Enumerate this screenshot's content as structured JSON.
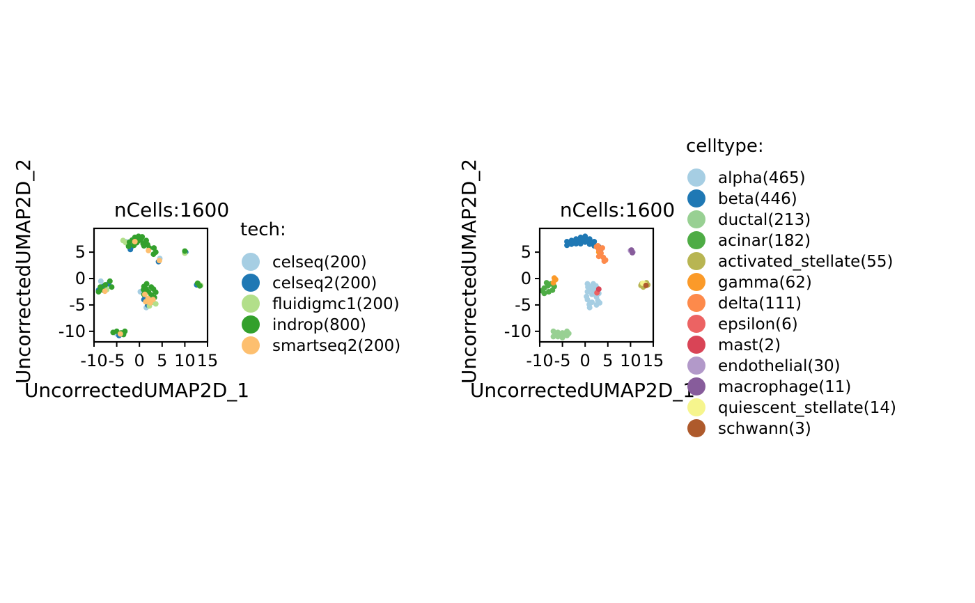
{
  "chart_data": [
    {
      "type": "scatter",
      "title": "nCells:1600",
      "xlabel": "UncorrectedUMAP2D_1",
      "ylabel": "UncorrectedUMAP2D_2",
      "xlim": [
        -10,
        15
      ],
      "ylim": [
        -12,
        9.5
      ],
      "xticks": [
        "-10",
        "-5",
        "0",
        "5",
        "10",
        "15"
      ],
      "yticks": [
        "5",
        "0",
        "-5",
        "-10"
      ],
      "grid": false,
      "legend": {
        "title": "tech:",
        "position": "right"
      },
      "series": [
        {
          "name": "celseq(200)",
          "color": "#a6cee3",
          "points": [
            [
              -7.5,
              -1.8
            ],
            [
              -8.5,
              -0.5
            ],
            [
              1.2,
              -3.5
            ],
            [
              1.5,
              -5.5
            ],
            [
              2.2,
              -4.2
            ],
            [
              4.5,
              3.8
            ],
            [
              -5,
              -10.5
            ],
            [
              0.2,
              -2.5
            ],
            [
              -3,
              7
            ]
          ]
        },
        {
          "name": "celseq2(200)",
          "color": "#1f78b4",
          "points": [
            [
              -8,
              -1.5
            ],
            [
              -9,
              -2.2
            ],
            [
              -6.8,
              -1
            ],
            [
              1,
              -4
            ],
            [
              1.8,
              -5
            ],
            [
              3,
              -4.5
            ],
            [
              -1.8,
              6
            ],
            [
              10.2,
              5
            ],
            [
              12.6,
              -1.2
            ],
            [
              4.2,
              3.2
            ],
            [
              -4.5,
              -10.8
            ],
            [
              -2,
              5.5
            ]
          ]
        },
        {
          "name": "fluidigmc1(200)",
          "color": "#b2df8a",
          "points": [
            [
              -3.6,
              7.2
            ],
            [
              -3,
              6.8
            ],
            [
              2.8,
              -4.5
            ],
            [
              3.6,
              -4.8
            ],
            [
              2.2,
              -5.2
            ],
            [
              13,
              -1
            ],
            [
              13.5,
              -1.3
            ],
            [
              10,
              4.8
            ],
            [
              -7.2,
              -2.1
            ],
            [
              3.1,
              -3.6
            ]
          ]
        },
        {
          "name": "indrop(800)",
          "color": "#33a02c",
          "points": [
            [
              -1,
              7.8
            ],
            [
              -0.2,
              8
            ],
            [
              0.3,
              7.4
            ],
            [
              -0.6,
              6.8
            ],
            [
              0.8,
              6.6
            ],
            [
              1.5,
              7.2
            ],
            [
              1,
              6.2
            ],
            [
              -1.2,
              6.3
            ],
            [
              -0.3,
              7.1
            ],
            [
              1.8,
              6.4
            ],
            [
              2.2,
              5.8
            ],
            [
              -1.6,
              7.3
            ],
            [
              -2.2,
              6.9
            ],
            [
              0.6,
              7.9
            ],
            [
              3.2,
              5.8
            ],
            [
              3.6,
              5
            ],
            [
              3.1,
              4.6
            ],
            [
              1,
              -1.5
            ],
            [
              1.5,
              -2
            ],
            [
              2,
              -2.5
            ],
            [
              1,
              -3
            ],
            [
              2.6,
              -3.1
            ],
            [
              3.1,
              -2
            ],
            [
              3.3,
              -3.6
            ],
            [
              1.6,
              -1
            ],
            [
              2.6,
              -1.6
            ],
            [
              3.6,
              -2.6
            ],
            [
              0.9,
              -2.1
            ],
            [
              -6.5,
              -0.5
            ],
            [
              -7.5,
              -1.2
            ],
            [
              -8,
              -2.2
            ],
            [
              -9,
              -2.5
            ],
            [
              -6.1,
              -1.6
            ],
            [
              -8.6,
              -1.6
            ],
            [
              -5,
              -10
            ],
            [
              -4,
              -10.3
            ],
            [
              -3.2,
              -10
            ],
            [
              -5.8,
              -10.2
            ],
            [
              -3.5,
              -10.6
            ],
            [
              10,
              5.2
            ],
            [
              12.8,
              -0.9
            ],
            [
              13.3,
              -1.4
            ],
            [
              -2.4,
              6.1
            ]
          ]
        },
        {
          "name": "smartseq2(200)",
          "color": "#fdbf6f",
          "points": [
            [
              1.2,
              -3
            ],
            [
              1.9,
              -3.8
            ],
            [
              2.4,
              -4.6
            ],
            [
              1.4,
              -4.4
            ],
            [
              3,
              -4
            ],
            [
              -7.6,
              -2.4
            ],
            [
              -1,
              7
            ],
            [
              2,
              5.3
            ],
            [
              4.4,
              3.4
            ],
            [
              -4.2,
              -10.5
            ]
          ]
        }
      ]
    },
    {
      "type": "scatter",
      "title": "nCells:1600",
      "xlabel": "UncorrectedUMAP2D_1",
      "ylabel": "UncorrectedUMAP2D_2",
      "xlim": [
        -10,
        15
      ],
      "ylim": [
        -12,
        9.5
      ],
      "xticks": [
        "-10",
        "-5",
        "0",
        "5",
        "10",
        "15"
      ],
      "yticks": [
        "5",
        "0",
        "-5",
        "-10"
      ],
      "grid": false,
      "legend": {
        "title": "celltype:",
        "position": "right"
      },
      "series": [
        {
          "name": "alpha(465)",
          "color": "#a6cee3",
          "points": [
            [
              0.5,
              -1
            ],
            [
              1.3,
              -1.5
            ],
            [
              2.1,
              -2
            ],
            [
              0.5,
              -2.5
            ],
            [
              1.5,
              -3
            ],
            [
              2.5,
              -3.5
            ],
            [
              0.5,
              -4
            ],
            [
              1.5,
              -4.5
            ],
            [
              2.5,
              -5
            ],
            [
              1,
              -5.5
            ],
            [
              2,
              -2.6
            ],
            [
              3,
              -2.8
            ],
            [
              0.3,
              -3.4
            ],
            [
              1.2,
              -2
            ],
            [
              2.8,
              -4.2
            ],
            [
              0.9,
              -4.9
            ],
            [
              1.8,
              -1
            ],
            [
              3.2,
              -4.6
            ],
            [
              0.6,
              -1.6
            ],
            [
              2.4,
              -1.4
            ]
          ]
        },
        {
          "name": "beta(446)",
          "color": "#1f78b4",
          "points": [
            [
              -4,
              7
            ],
            [
              -3,
              7.2
            ],
            [
              -2,
              7.5
            ],
            [
              -1,
              7.8
            ],
            [
              0,
              8
            ],
            [
              1,
              7.5
            ],
            [
              2,
              7
            ],
            [
              -4,
              6.3
            ],
            [
              -3,
              6.5
            ],
            [
              -2,
              6.6
            ],
            [
              -1,
              6.6
            ],
            [
              0,
              6.9
            ],
            [
              1,
              6.5
            ],
            [
              2,
              6.2
            ],
            [
              3,
              6
            ],
            [
              -0.5,
              7.4
            ],
            [
              -1.5,
              7
            ],
            [
              0.5,
              7.2
            ],
            [
              1.5,
              6.8
            ],
            [
              -2.5,
              7.1
            ],
            [
              3.5,
              5.6
            ],
            [
              -3.5,
              6.8
            ]
          ]
        },
        {
          "name": "ductal(213)",
          "color": "#98d093",
          "points": [
            [
              -7,
              -10
            ],
            [
              -6,
              -10.2
            ],
            [
              -5,
              -10.3
            ],
            [
              -4,
              -10
            ],
            [
              -7,
              -11
            ],
            [
              -6,
              -11
            ],
            [
              -5,
              -11.2
            ],
            [
              -4,
              -10.8
            ],
            [
              -6.5,
              -10.6
            ],
            [
              -4.5,
              -10.6
            ],
            [
              -5.5,
              -10.7
            ],
            [
              -3.6,
              -10.4
            ]
          ]
        },
        {
          "name": "acinar(182)",
          "color": "#4eac45",
          "points": [
            [
              -9,
              -1.8
            ],
            [
              -8,
              -2.5
            ],
            [
              -7.5,
              -1
            ],
            [
              -8.5,
              -0.8
            ],
            [
              -9,
              -2.8
            ],
            [
              -6.8,
              -1.5
            ],
            [
              -8.2,
              -1.4
            ],
            [
              -7.2,
              -2.2
            ],
            [
              -9.5,
              -2.3
            ]
          ]
        },
        {
          "name": "activated_stellate(55)",
          "color": "#b8b552",
          "points": [
            [
              12.5,
              -1
            ],
            [
              13,
              -1.4
            ],
            [
              13.5,
              -0.8
            ],
            [
              12.8,
              -1.6
            ],
            [
              13.8,
              -1.2
            ],
            [
              12.3,
              -1.3
            ]
          ]
        },
        {
          "name": "gamma(62)",
          "color": "#fb9a29",
          "points": [
            [
              -6.5,
              -0.2
            ],
            [
              -7,
              -0.8
            ],
            [
              3,
              5
            ],
            [
              3.4,
              4.4
            ],
            [
              -6.8,
              0.1
            ]
          ]
        },
        {
          "name": "delta(111)",
          "color": "#fd8a4b",
          "points": [
            [
              2.5,
              6
            ],
            [
              3,
              5.5
            ],
            [
              3.5,
              4.8
            ],
            [
              4,
              4
            ],
            [
              4.5,
              3.5
            ],
            [
              3,
              4.2
            ],
            [
              2.8,
              6.2
            ],
            [
              3.8,
              5.8
            ],
            [
              4.2,
              3.3
            ]
          ]
        },
        {
          "name": "epsilon(6)",
          "color": "#ec6363",
          "points": [
            [
              2.6,
              -2.7
            ]
          ]
        },
        {
          "name": "mast(2)",
          "color": "#d94456",
          "points": [
            [
              3,
              -2
            ]
          ]
        },
        {
          "name": "endothelial(30)",
          "color": "#b299c9",
          "points": [
            [
              10,
              5.3
            ],
            [
              10.5,
              5
            ]
          ]
        },
        {
          "name": "macrophage(11)",
          "color": "#875c9b",
          "points": [
            [
              10.2,
              5.4
            ],
            [
              10.4,
              4.9
            ]
          ]
        },
        {
          "name": "quiescent_stellate(14)",
          "color": "#f6f58d",
          "points": [
            [
              13.2,
              -1.1
            ],
            [
              12.7,
              -0.9
            ]
          ]
        },
        {
          "name": "schwann(3)",
          "color": "#ae5a2c",
          "points": [
            [
              13.4,
              -1.3
            ]
          ]
        }
      ]
    }
  ]
}
